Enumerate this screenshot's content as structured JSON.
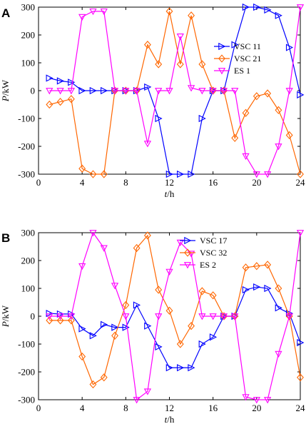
{
  "chart_data": [
    {
      "type": "line",
      "panel_label": "A",
      "xlabel": "t/h",
      "ylabel": "P/kW",
      "xlim": [
        0,
        24
      ],
      "ylim": [
        -300,
        300
      ],
      "xticks": [
        0,
        4,
        8,
        12,
        16,
        20,
        24
      ],
      "yticks": [
        -300,
        -200,
        -100,
        0,
        100,
        200,
        300
      ],
      "grid": false,
      "legend": "upper-right",
      "x": [
        1,
        2,
        3,
        4,
        5,
        6,
        7,
        8,
        9,
        10,
        11,
        12,
        13,
        14,
        15,
        16,
        17,
        18,
        19,
        20,
        21,
        22,
        23,
        24
      ],
      "series": [
        {
          "name": "VSC 11",
          "color": "#0000ff",
          "marker": "triangle-right",
          "values": [
            45,
            35,
            30,
            0,
            0,
            0,
            0,
            0,
            0,
            13,
            -100,
            -300,
            -300,
            -300,
            -100,
            0,
            0,
            165,
            300,
            300,
            290,
            270,
            155,
            -15
          ]
        },
        {
          "name": "VSC 21",
          "color": "#ff6600",
          "marker": "diamond",
          "values": [
            -50,
            -40,
            -30,
            -280,
            -300,
            -300,
            0,
            0,
            0,
            165,
            95,
            285,
            95,
            270,
            95,
            0,
            0,
            -170,
            -80,
            -20,
            -10,
            -70,
            -160,
            -300
          ]
        },
        {
          "name": "ES 1",
          "color": "#ff00ff",
          "marker": "triangle-down",
          "values": [
            0,
            0,
            0,
            265,
            285,
            285,
            0,
            0,
            0,
            -190,
            0,
            0,
            195,
            10,
            0,
            0,
            0,
            0,
            -235,
            -300,
            -300,
            -200,
            0,
            300
          ]
        }
      ]
    },
    {
      "type": "line",
      "panel_label": "B",
      "xlabel": "t/h",
      "ylabel": "P/kW",
      "xlim": [
        0,
        24
      ],
      "ylim": [
        -300,
        300
      ],
      "xticks": [
        0,
        4,
        8,
        12,
        16,
        20,
        24
      ],
      "yticks": [
        -300,
        -200,
        -100,
        0,
        100,
        200,
        300
      ],
      "grid": false,
      "legend": "upper-center",
      "x": [
        1,
        2,
        3,
        4,
        5,
        6,
        7,
        8,
        9,
        10,
        11,
        12,
        13,
        14,
        15,
        16,
        17,
        18,
        19,
        20,
        21,
        22,
        23,
        24
      ],
      "series": [
        {
          "name": "VSC 17",
          "color": "#0000ff",
          "marker": "triangle-right",
          "values": [
            10,
            8,
            8,
            -45,
            -70,
            -30,
            -40,
            -40,
            40,
            -35,
            -110,
            -185,
            -185,
            -185,
            -100,
            -75,
            0,
            0,
            95,
            105,
            100,
            30,
            10,
            -95
          ]
        },
        {
          "name": "VSC 32",
          "color": "#ff6600",
          "marker": "diamond",
          "values": [
            -15,
            -15,
            -15,
            -145,
            -245,
            -220,
            -70,
            40,
            245,
            290,
            95,
            20,
            -100,
            -35,
            90,
            75,
            0,
            0,
            175,
            180,
            185,
            100,
            0,
            -220
          ]
        },
        {
          "name": "ES 2",
          "color": "#ff00ff",
          "marker": "triangle-down",
          "values": [
            0,
            0,
            0,
            180,
            300,
            245,
            110,
            0,
            -300,
            -270,
            0,
            160,
            265,
            225,
            0,
            0,
            0,
            0,
            -290,
            -300,
            -300,
            -135,
            0,
            300
          ]
        }
      ]
    }
  ]
}
